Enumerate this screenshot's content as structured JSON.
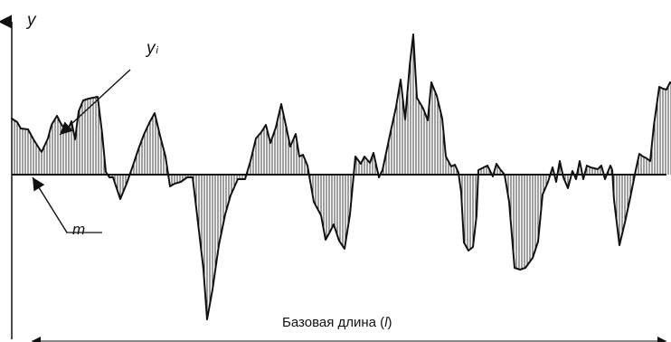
{
  "labels": {
    "y_axis": "y",
    "ordinate_symbol": "y",
    "ordinate_subscript": "i",
    "mean_line": "m",
    "baseline_prefix": "Базовая длина (",
    "baseline_symbol": "l",
    "baseline_suffix": ")"
  },
  "colors": {
    "ink": "#111111",
    "background": "#ffffff"
  },
  "profile": [
    [
      0,
      62
    ],
    [
      6,
      58
    ],
    [
      10,
      51
    ],
    [
      18,
      50
    ],
    [
      24,
      39
    ],
    [
      29,
      31
    ],
    [
      33,
      25
    ],
    [
      40,
      40
    ],
    [
      44,
      55
    ],
    [
      50,
      65
    ],
    [
      54,
      57
    ],
    [
      58,
      51
    ],
    [
      62,
      49
    ],
    [
      66,
      59
    ],
    [
      70,
      39
    ],
    [
      74,
      70
    ],
    [
      79,
      82
    ],
    [
      85,
      84
    ],
    [
      90,
      85
    ],
    [
      95,
      86
    ],
    [
      100,
      45
    ],
    [
      104,
      3
    ],
    [
      108,
      -3
    ],
    [
      112,
      -3
    ],
    [
      120,
      -27
    ],
    [
      127,
      -10
    ],
    [
      134,
      10
    ],
    [
      140,
      28
    ],
    [
      146,
      44
    ],
    [
      152,
      57
    ],
    [
      158,
      68
    ],
    [
      164,
      43
    ],
    [
      170,
      20
    ],
    [
      175,
      -13
    ],
    [
      180,
      -10
    ],
    [
      187,
      -8
    ],
    [
      194,
      -3
    ],
    [
      200,
      -3
    ],
    [
      205,
      -45
    ],
    [
      212,
      -105
    ],
    [
      216,
      -160
    ],
    [
      222,
      -127
    ],
    [
      229,
      -78
    ],
    [
      236,
      -44
    ],
    [
      242,
      -23
    ],
    [
      250,
      -5
    ],
    [
      258,
      -5
    ],
    [
      264,
      15
    ],
    [
      270,
      40
    ],
    [
      276,
      47
    ],
    [
      281,
      55
    ],
    [
      286,
      35
    ],
    [
      292,
      52
    ],
    [
      298,
      78
    ],
    [
      303,
      55
    ],
    [
      308,
      31
    ],
    [
      314,
      45
    ],
    [
      318,
      20
    ],
    [
      322,
      22
    ],
    [
      327,
      10
    ],
    [
      334,
      -30
    ],
    [
      342,
      -45
    ],
    [
      347,
      -72
    ],
    [
      352,
      -63
    ],
    [
      356,
      -55
    ],
    [
      362,
      -73
    ],
    [
      368,
      -82
    ],
    [
      374,
      -44
    ],
    [
      380,
      20
    ],
    [
      386,
      12
    ],
    [
      390,
      20
    ],
    [
      396,
      13
    ],
    [
      400,
      24
    ],
    [
      406,
      -3
    ],
    [
      410,
      5
    ],
    [
      418,
      43
    ],
    [
      425,
      75
    ],
    [
      430,
      105
    ],
    [
      435,
      61
    ],
    [
      440,
      120
    ],
    [
      444,
      155
    ],
    [
      448,
      85
    ],
    [
      455,
      73
    ],
    [
      460,
      60
    ],
    [
      464,
      102
    ],
    [
      470,
      87
    ],
    [
      476,
      62
    ],
    [
      480,
      20
    ],
    [
      486,
      9
    ],
    [
      490,
      11
    ],
    [
      494,
      2
    ],
    [
      497,
      -20
    ],
    [
      500,
      -75
    ],
    [
      505,
      -84
    ],
    [
      510,
      -80
    ],
    [
      514,
      -45
    ],
    [
      516,
      5
    ],
    [
      520,
      7
    ],
    [
      526,
      10
    ],
    [
      532,
      -2
    ],
    [
      536,
      12
    ],
    [
      540,
      6
    ],
    [
      545,
      0
    ],
    [
      550,
      -30
    ],
    [
      556,
      -103
    ],
    [
      562,
      -105
    ],
    [
      568,
      -103
    ],
    [
      576,
      -92
    ],
    [
      582,
      -74
    ],
    [
      587,
      -22
    ],
    [
      590,
      -15
    ],
    [
      593,
      -8
    ],
    [
      598,
      8
    ],
    [
      602,
      -8
    ],
    [
      606,
      15
    ],
    [
      610,
      -3
    ],
    [
      615,
      -15
    ],
    [
      620,
      4
    ],
    [
      624,
      -5
    ],
    [
      628,
      15
    ],
    [
      632,
      -5
    ],
    [
      636,
      10
    ],
    [
      640,
      8
    ],
    [
      644,
      7
    ],
    [
      648,
      6
    ],
    [
      652,
      10
    ],
    [
      656,
      -5
    ],
    [
      662,
      10
    ],
    [
      664,
      5
    ],
    [
      666,
      -28
    ],
    [
      672,
      -78
    ],
    [
      678,
      -53
    ],
    [
      684,
      -25
    ],
    [
      690,
      5
    ],
    [
      694,
      23
    ],
    [
      698,
      20
    ],
    [
      702,
      18
    ],
    [
      706,
      15
    ],
    [
      710,
      54
    ],
    [
      716,
      97
    ],
    [
      720,
      95
    ],
    [
      724,
      94
    ],
    [
      728,
      102
    ],
    [
      735,
      100
    ],
    [
      740,
      100
    ]
  ]
}
